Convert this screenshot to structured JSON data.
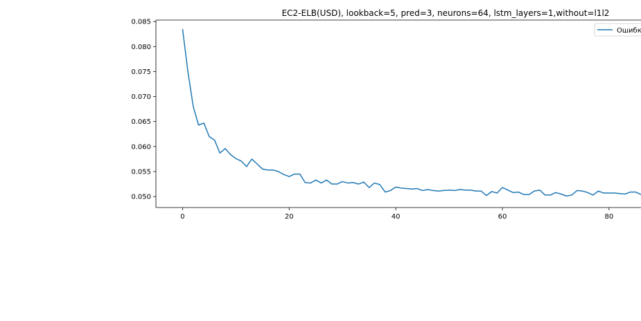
{
  "chart_data": {
    "type": "line",
    "title": "EC2-ELB(USD), lookback=5, pred=3, neurons=64, lstm_layers=1,without=l1l2",
    "xlabel": "",
    "ylabel": "",
    "xlim": [
      -5,
      86
    ],
    "ylim": [
      0.0478,
      0.0853
    ],
    "xticks": [
      0,
      20,
      40,
      60,
      80
    ],
    "xtick_labels": [
      "0",
      "20",
      "40",
      "60",
      "80"
    ],
    "yticks": [
      0.05,
      0.055,
      0.06,
      0.065,
      0.07,
      0.075,
      0.08,
      0.085
    ],
    "ytick_labels": [
      "0.050",
      "0.055",
      "0.060",
      "0.065",
      "0.070",
      "0.075",
      "0.080",
      "0.085"
    ],
    "grid": false,
    "legend_position": "top-right",
    "series": [
      {
        "name": "Ошибк",
        "color": "#1f77b4",
        "x": [
          0,
          1,
          2,
          3,
          4,
          5,
          6,
          7,
          8,
          9,
          10,
          11,
          12,
          13,
          14,
          15,
          16,
          17,
          18,
          19,
          20,
          21,
          22,
          23,
          24,
          25,
          26,
          27,
          28,
          29,
          30,
          31,
          32,
          33,
          34,
          35,
          36,
          37,
          38,
          39,
          40,
          41,
          42,
          43,
          44,
          45,
          46,
          47,
          48,
          49,
          50,
          51,
          52,
          53,
          54,
          55,
          56,
          57,
          58,
          59,
          60,
          61,
          62,
          63,
          64,
          65,
          66,
          67,
          68,
          69,
          70,
          71,
          72,
          73,
          74,
          75,
          76,
          77,
          78,
          79,
          80,
          81,
          82,
          83,
          84,
          85,
          86
        ],
        "values": [
          0.0835,
          0.075,
          0.068,
          0.0643,
          0.0647,
          0.062,
          0.0613,
          0.0587,
          0.0596,
          0.0584,
          0.0576,
          0.0571,
          0.056,
          0.0575,
          0.0565,
          0.0555,
          0.0553,
          0.0553,
          0.055,
          0.0544,
          0.054,
          0.0545,
          0.0545,
          0.0528,
          0.0527,
          0.0533,
          0.0527,
          0.0533,
          0.0525,
          0.0525,
          0.053,
          0.0527,
          0.0528,
          0.0525,
          0.0529,
          0.0518,
          0.0527,
          0.0524,
          0.0509,
          0.0512,
          0.0519,
          0.0517,
          0.0516,
          0.0515,
          0.0516,
          0.0512,
          0.0514,
          0.0512,
          0.0511,
          0.0512,
          0.0513,
          0.0512,
          0.0514,
          0.0513,
          0.0513,
          0.0511,
          0.0511,
          0.0502,
          0.051,
          0.0507,
          0.0518,
          0.0513,
          0.0508,
          0.0509,
          0.0504,
          0.0504,
          0.0511,
          0.0513,
          0.0503,
          0.0503,
          0.0508,
          0.0505,
          0.0501,
          0.0503,
          0.0512,
          0.0511,
          0.0508,
          0.0503,
          0.0511,
          0.0507,
          0.0507,
          0.0507,
          0.0506,
          0.0505,
          0.0509,
          0.0509,
          0.0504
        ]
      }
    ]
  }
}
